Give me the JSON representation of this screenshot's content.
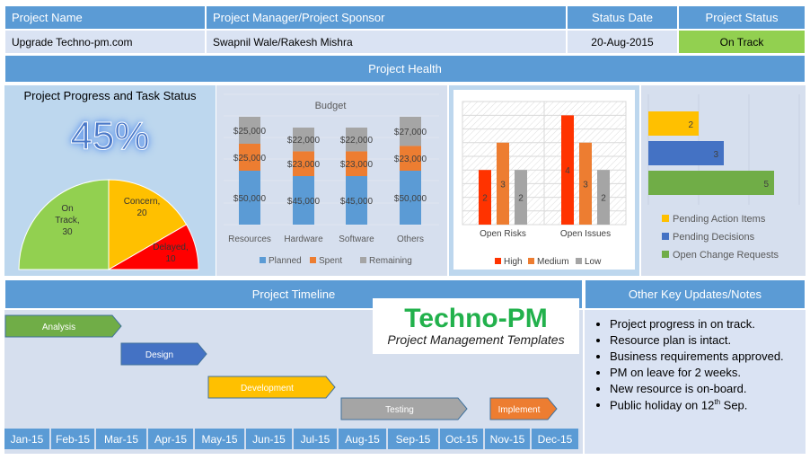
{
  "header": {
    "columns": [
      "Project Name",
      "Project Manager/Project Sponsor",
      "Status Date",
      "Project Status"
    ],
    "values": [
      "Upgrade Techno-pm.com",
      "Swapnil Wale/Rakesh Mishra",
      "20-Aug-2015",
      "On Track"
    ]
  },
  "colors": {
    "header": "#5b9bd5",
    "status": "#92d050"
  },
  "health": {
    "title": "Project Health",
    "progress_title": "Project Progress and Task Status",
    "progress": "45%"
  },
  "chart_data": [
    {
      "type": "pie",
      "title": "Task Status",
      "slices": [
        {
          "label": "On Track",
          "value": 30,
          "color": "#92d050",
          "text": "On Track, 30"
        },
        {
          "label": "Concern",
          "value": 20,
          "color": "#ffc000",
          "text": "Concern, 20"
        },
        {
          "label": "Delayed",
          "value": 10,
          "color": "#ff0000",
          "text": "Delayed, 10"
        }
      ]
    },
    {
      "type": "bar",
      "stacked": true,
      "title": "Budget",
      "categories": [
        "Resources",
        "Hardware",
        "Software",
        "Others"
      ],
      "series": [
        {
          "name": "Planned",
          "values": [
            50000,
            45000,
            45000,
            50000
          ],
          "color": "#5b9bd5"
        },
        {
          "name": "Spent",
          "values": [
            25000,
            23000,
            23000,
            23000
          ],
          "color": "#ed7d31"
        },
        {
          "name": "Remaining",
          "values": [
            25000,
            22000,
            22000,
            27000
          ],
          "color": "#a5a5a5"
        }
      ],
      "labels": [
        [
          "$50,000",
          "$45,000",
          "$45,000",
          "$50,000"
        ],
        [
          "$25,000",
          "$23,000",
          "$23,000",
          "$23,000"
        ],
        [
          "$25,000",
          "$22,000",
          "$22,000",
          "$27,000"
        ]
      ]
    },
    {
      "type": "bar",
      "title": "",
      "categories": [
        "Open Risks",
        "Open Issues"
      ],
      "ylim": [
        0,
        4.5
      ],
      "series": [
        {
          "name": "High",
          "values": [
            2,
            4
          ],
          "color": "#ff3300"
        },
        {
          "name": "Medium",
          "values": [
            3,
            3
          ],
          "color": "#ed7d31"
        },
        {
          "name": "Low",
          "values": [
            2,
            2
          ],
          "color": "#a5a5a5"
        }
      ]
    },
    {
      "type": "bar",
      "orientation": "horizontal",
      "categories": [
        "Pending Action Items",
        "Pending Decisions",
        "Open Change Requests"
      ],
      "values": [
        2,
        3,
        5
      ],
      "colors": [
        "#ffc000",
        "#4472c4",
        "#70ad47"
      ]
    }
  ],
  "timeline": {
    "title": "Project Timeline",
    "months": [
      "Jan-15",
      "Feb-15",
      "Mar-15",
      "Apr-15",
      "May-15",
      "Jun-15",
      "Jul-15",
      "Aug-15",
      "Sep-15",
      "Oct-15",
      "Nov-15",
      "Dec-15"
    ],
    "phases": [
      {
        "label": "Analysis",
        "color": "#70ad47"
      },
      {
        "label": "Design",
        "color": "#4472c4"
      },
      {
        "label": "Development",
        "color": "#ffc000"
      },
      {
        "label": "Testing",
        "color": "#a5a5a5"
      },
      {
        "label": "Implement",
        "color": "#ed7d31"
      }
    ]
  },
  "logo": {
    "name": "Techno-PM",
    "tagline": "Project Management Templates"
  },
  "notes": {
    "title": "Other Key Updates/Notes",
    "items": [
      "Project progress in on track.",
      "Resource plan is intact.",
      "Business requirements approved.",
      "PM on leave for 2 weeks.",
      "New resource is on-board."
    ],
    "last_item": "Public holiday on 12",
    "last_sup": "th",
    "last_tail": " Sep."
  }
}
